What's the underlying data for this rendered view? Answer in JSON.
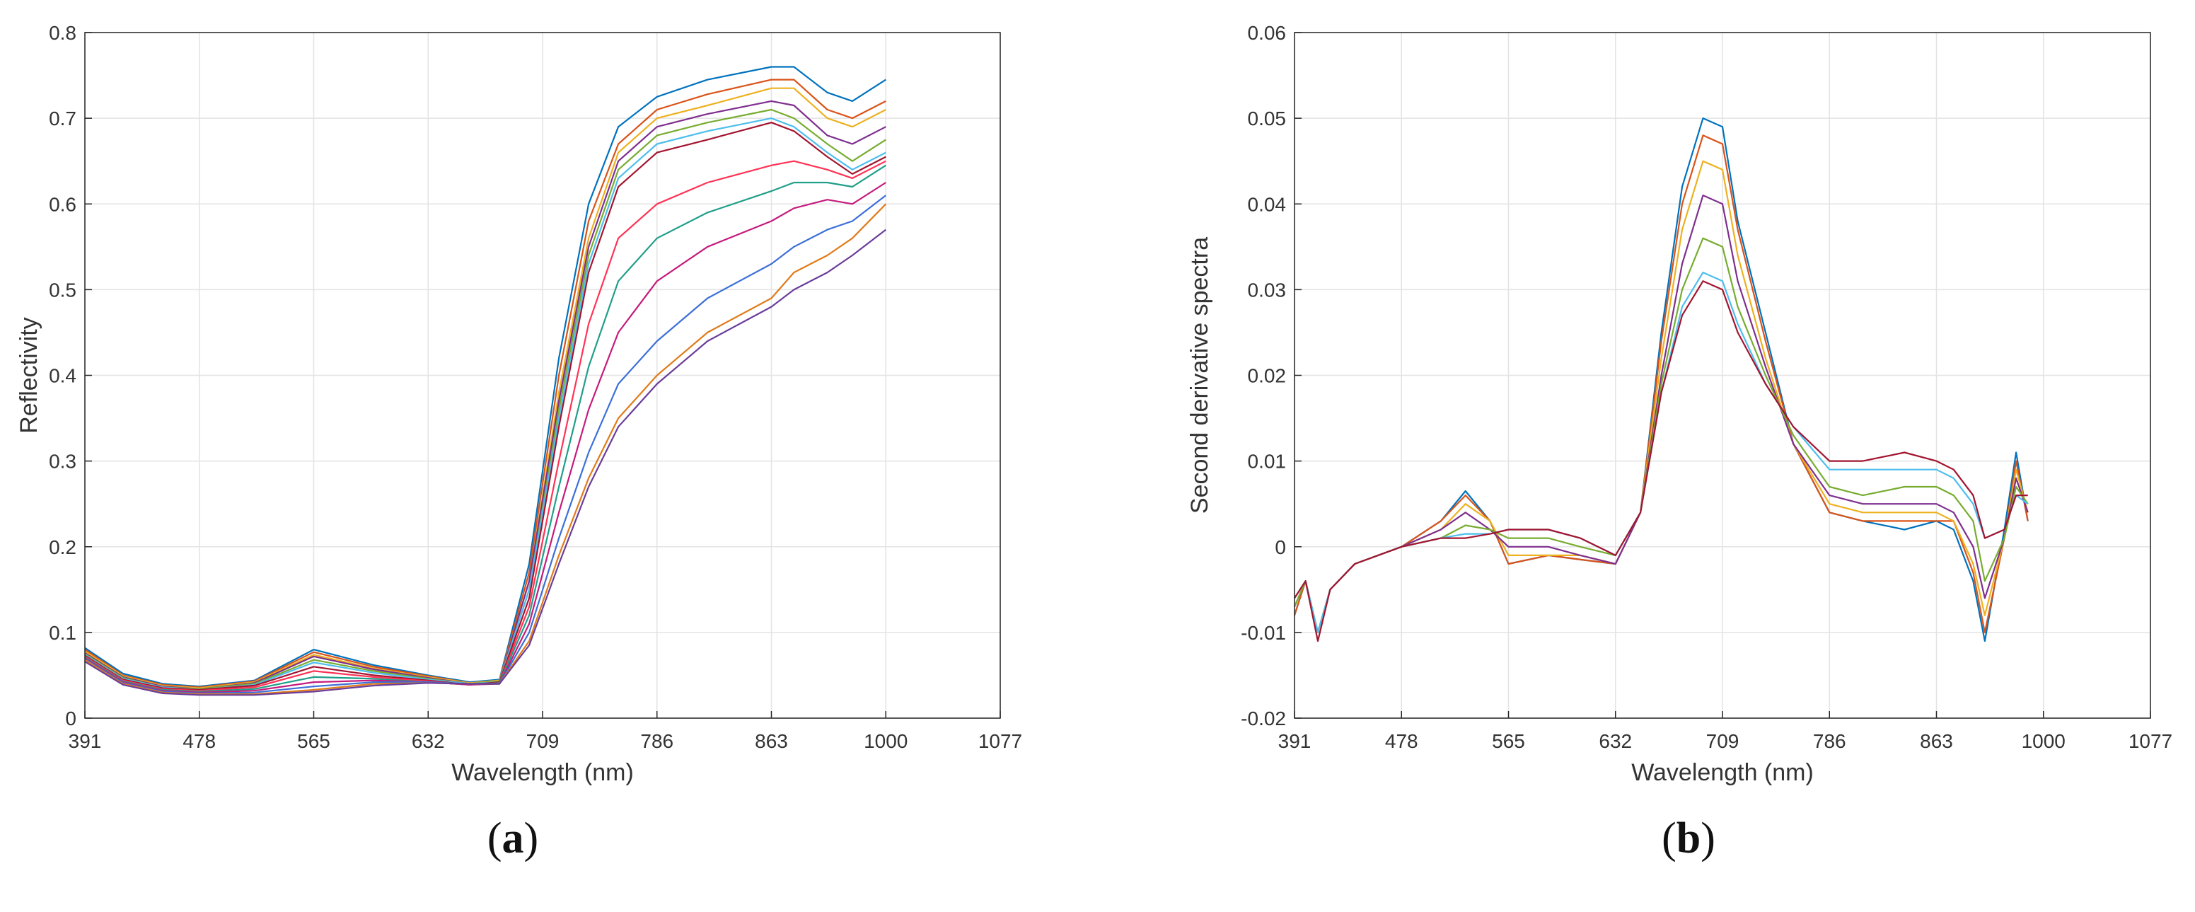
{
  "chart_data": [
    {
      "type": "line",
      "panel": "a",
      "panel_label": "a",
      "xlabel": "Wavelength (nm)",
      "ylabel": "Reflectivity",
      "xticks": [
        391,
        478,
        565,
        632,
        709,
        786,
        863,
        1000,
        1077
      ],
      "xtick_labels": [
        "391",
        "478",
        "565",
        "632",
        "709",
        "786",
        "863",
        "1000",
        "1077"
      ],
      "yticks": [
        0,
        0.1,
        0.2,
        0.3,
        0.4,
        0.5,
        0.6,
        0.7,
        0.8
      ],
      "ytick_labels": [
        "0",
        "0.1",
        "0.2",
        "0.3",
        "0.4",
        "0.5",
        "0.6",
        "0.7",
        "0.8"
      ],
      "ylim": [
        0,
        0.8
      ],
      "grid": true,
      "series_description": "many reflectance spectra (~60 samples)",
      "x": [
        391,
        420,
        450,
        478,
        520,
        565,
        600,
        632,
        660,
        680,
        700,
        720,
        740,
        760,
        786,
        820,
        863,
        890,
        930,
        960,
        1000
      ],
      "series": [
        {
          "values": [
            0.082,
            0.052,
            0.04,
            0.037,
            0.044,
            0.08,
            0.062,
            0.05,
            0.042,
            0.045,
            0.18,
            0.42,
            0.6,
            0.69,
            0.725,
            0.745,
            0.76,
            0.76,
            0.73,
            0.72,
            0.745
          ]
        },
        {
          "values": [
            0.08,
            0.05,
            0.039,
            0.036,
            0.043,
            0.077,
            0.06,
            0.049,
            0.041,
            0.044,
            0.17,
            0.4,
            0.58,
            0.67,
            0.71,
            0.728,
            0.745,
            0.745,
            0.71,
            0.7,
            0.72
          ]
        },
        {
          "values": [
            0.078,
            0.049,
            0.038,
            0.035,
            0.042,
            0.074,
            0.058,
            0.048,
            0.041,
            0.044,
            0.16,
            0.38,
            0.56,
            0.66,
            0.7,
            0.715,
            0.735,
            0.735,
            0.7,
            0.69,
            0.71
          ]
        },
        {
          "values": [
            0.076,
            0.048,
            0.037,
            0.034,
            0.041,
            0.072,
            0.057,
            0.047,
            0.04,
            0.043,
            0.16,
            0.37,
            0.55,
            0.65,
            0.69,
            0.705,
            0.72,
            0.715,
            0.68,
            0.67,
            0.69
          ]
        },
        {
          "values": [
            0.075,
            0.047,
            0.036,
            0.034,
            0.04,
            0.068,
            0.055,
            0.046,
            0.04,
            0.043,
            0.15,
            0.36,
            0.54,
            0.64,
            0.68,
            0.695,
            0.71,
            0.7,
            0.67,
            0.65,
            0.675
          ]
        },
        {
          "values": [
            0.074,
            0.046,
            0.036,
            0.033,
            0.039,
            0.065,
            0.053,
            0.045,
            0.04,
            0.042,
            0.15,
            0.35,
            0.53,
            0.63,
            0.67,
            0.685,
            0.7,
            0.69,
            0.66,
            0.64,
            0.66
          ]
        },
        {
          "values": [
            0.073,
            0.045,
            0.035,
            0.033,
            0.038,
            0.06,
            0.05,
            0.044,
            0.039,
            0.042,
            0.14,
            0.34,
            0.52,
            0.62,
            0.66,
            0.675,
            0.695,
            0.685,
            0.655,
            0.635,
            0.655
          ]
        },
        {
          "values": [
            0.072,
            0.044,
            0.034,
            0.032,
            0.036,
            0.055,
            0.048,
            0.043,
            0.039,
            0.041,
            0.13,
            0.3,
            0.46,
            0.56,
            0.6,
            0.625,
            0.645,
            0.65,
            0.64,
            0.63,
            0.65
          ]
        },
        {
          "values": [
            0.071,
            0.043,
            0.033,
            0.031,
            0.034,
            0.048,
            0.046,
            0.042,
            0.039,
            0.041,
            0.12,
            0.27,
            0.41,
            0.51,
            0.56,
            0.59,
            0.615,
            0.625,
            0.625,
            0.62,
            0.645
          ]
        },
        {
          "values": [
            0.07,
            0.042,
            0.032,
            0.03,
            0.032,
            0.042,
            0.044,
            0.042,
            0.039,
            0.04,
            0.11,
            0.24,
            0.36,
            0.45,
            0.51,
            0.55,
            0.58,
            0.595,
            0.605,
            0.6,
            0.625
          ]
        },
        {
          "values": [
            0.069,
            0.041,
            0.031,
            0.029,
            0.03,
            0.037,
            0.042,
            0.042,
            0.04,
            0.04,
            0.1,
            0.21,
            0.31,
            0.39,
            0.44,
            0.49,
            0.53,
            0.55,
            0.57,
            0.58,
            0.61
          ]
        },
        {
          "values": [
            0.068,
            0.04,
            0.03,
            0.028,
            0.028,
            0.033,
            0.04,
            0.041,
            0.04,
            0.04,
            0.09,
            0.19,
            0.28,
            0.35,
            0.4,
            0.45,
            0.49,
            0.52,
            0.54,
            0.56,
            0.6
          ]
        },
        {
          "values": [
            0.066,
            0.039,
            0.029,
            0.027,
            0.027,
            0.031,
            0.038,
            0.041,
            0.04,
            0.04,
            0.085,
            0.18,
            0.27,
            0.34,
            0.39,
            0.44,
            0.48,
            0.5,
            0.52,
            0.54,
            0.57
          ]
        }
      ]
    },
    {
      "type": "line",
      "panel": "b",
      "panel_label": "b",
      "xlabel": "Wavelength (nm)",
      "ylabel": "Second derivative spectra",
      "xticks": [
        391,
        478,
        565,
        632,
        709,
        786,
        863,
        1000,
        1077
      ],
      "xtick_labels": [
        "391",
        "478",
        "565",
        "632",
        "709",
        "786",
        "863",
        "1000",
        "1077"
      ],
      "yticks": [
        -0.02,
        -0.01,
        0,
        0.01,
        0.02,
        0.03,
        0.04,
        0.05,
        0.06
      ],
      "ytick_labels": [
        "-0.02",
        "-0.01",
        "0",
        "0.01",
        "0.02",
        "0.03",
        "0.04",
        "0.05",
        "0.06"
      ],
      "ylim": [
        -0.02,
        0.06
      ],
      "grid": true,
      "series_description": "second-derivative spectra of the same samples",
      "x": [
        391,
        400,
        410,
        420,
        440,
        478,
        510,
        530,
        550,
        565,
        590,
        610,
        632,
        650,
        665,
        680,
        695,
        709,
        720,
        740,
        760,
        786,
        810,
        840,
        863,
        885,
        910,
        925,
        950,
        965,
        980
      ],
      "series": [
        {
          "values": [
            -0.008,
            -0.004,
            -0.01,
            -0.005,
            -0.002,
            0.0,
            0.003,
            0.0065,
            0.003,
            -0.002,
            -0.001,
            -0.0015,
            -0.002,
            0.004,
            0.025,
            0.042,
            0.05,
            0.049,
            0.038,
            0.025,
            0.012,
            0.004,
            0.003,
            0.002,
            0.003,
            0.002,
            -0.004,
            -0.011,
            0.002,
            0.011,
            0.003
          ]
        },
        {
          "values": [
            -0.008,
            -0.004,
            -0.01,
            -0.005,
            -0.002,
            0.0,
            0.003,
            0.006,
            0.003,
            -0.002,
            -0.001,
            -0.0015,
            -0.002,
            0.004,
            0.024,
            0.04,
            0.048,
            0.047,
            0.037,
            0.024,
            0.012,
            0.004,
            0.003,
            0.003,
            0.003,
            0.003,
            -0.003,
            -0.01,
            0.001,
            0.01,
            0.003
          ]
        },
        {
          "values": [
            -0.007,
            -0.004,
            -0.01,
            -0.005,
            -0.002,
            0.0,
            0.002,
            0.005,
            0.003,
            -0.001,
            -0.001,
            -0.001,
            -0.002,
            0.004,
            0.022,
            0.037,
            0.045,
            0.044,
            0.034,
            0.022,
            0.012,
            0.005,
            0.004,
            0.004,
            0.004,
            0.003,
            -0.002,
            -0.008,
            0.001,
            0.009,
            0.004
          ]
        },
        {
          "values": [
            -0.007,
            -0.004,
            -0.01,
            -0.005,
            -0.002,
            0.0,
            0.002,
            0.004,
            0.002,
            0.0,
            0.0,
            -0.001,
            -0.002,
            0.004,
            0.02,
            0.033,
            0.041,
            0.04,
            0.031,
            0.021,
            0.012,
            0.006,
            0.005,
            0.005,
            0.005,
            0.004,
            0.0,
            -0.006,
            0.001,
            0.008,
            0.004
          ]
        },
        {
          "values": [
            -0.007,
            -0.004,
            -0.01,
            -0.005,
            -0.002,
            0.0,
            0.001,
            0.0025,
            0.002,
            0.001,
            0.001,
            0.0,
            -0.001,
            0.004,
            0.019,
            0.03,
            0.036,
            0.035,
            0.028,
            0.02,
            0.013,
            0.007,
            0.006,
            0.007,
            0.007,
            0.006,
            0.003,
            -0.004,
            0.001,
            0.007,
            0.005
          ]
        },
        {
          "values": [
            -0.006,
            -0.004,
            -0.01,
            -0.005,
            -0.002,
            0.0,
            0.001,
            0.0015,
            0.0015,
            0.002,
            0.002,
            0.001,
            -0.001,
            0.004,
            0.018,
            0.028,
            0.032,
            0.031,
            0.026,
            0.019,
            0.014,
            0.009,
            0.009,
            0.009,
            0.009,
            0.008,
            0.005,
            0.001,
            0.002,
            0.006,
            0.005
          ]
        },
        {
          "values": [
            -0.006,
            -0.004,
            -0.011,
            -0.005,
            -0.002,
            0.0,
            0.001,
            0.001,
            0.0015,
            0.002,
            0.002,
            0.001,
            -0.001,
            0.004,
            0.018,
            0.027,
            0.031,
            0.03,
            0.025,
            0.019,
            0.014,
            0.01,
            0.01,
            0.011,
            0.01,
            0.009,
            0.006,
            0.001,
            0.002,
            0.006,
            0.006
          ]
        }
      ]
    }
  ]
}
